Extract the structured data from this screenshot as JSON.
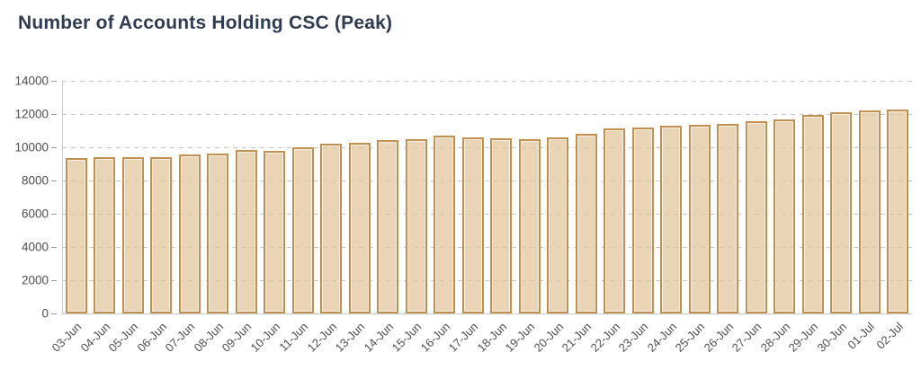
{
  "title": {
    "text": "Number of Accounts Holding CSC (Peak)"
  },
  "chart_data": {
    "type": "bar",
    "title": "Number of Accounts Holding CSC (Peak)",
    "categories": [
      "03-Jun",
      "04-Jun",
      "05-Jun",
      "06-Jun",
      "07-Jun",
      "08-Jun",
      "09-Jun",
      "10-Jun",
      "11-Jun",
      "12-Jun",
      "13-Jun",
      "14-Jun",
      "15-Jun",
      "16-Jun",
      "17-Jun",
      "18-Jun",
      "19-Jun",
      "20-Jun",
      "21-Jun",
      "22-Jun",
      "23-Jun",
      "24-Jun",
      "25-Jun",
      "26-Jun",
      "27-Jun",
      "28-Jun",
      "29-Jun",
      "30-Jun",
      "01-Jul",
      "02-Jul"
    ],
    "values": [
      9370,
      9395,
      9430,
      9395,
      9570,
      9610,
      9840,
      9805,
      10020,
      10200,
      10290,
      10420,
      10470,
      10700,
      10610,
      10540,
      10510,
      10600,
      10800,
      11150,
      11200,
      11300,
      11340,
      11390,
      11550,
      11680,
      11940,
      12100,
      12220,
      12260
    ],
    "xlabel": "",
    "ylabel": "",
    "ylim": [
      0,
      14000
    ],
    "yticks": [
      0,
      2000,
      4000,
      6000,
      8000,
      10000,
      12000,
      14000
    ],
    "grid": "horizontal-dashed",
    "legend": "none",
    "colors": {
      "bar_fill": "rgba(224,196,152,0.72)",
      "bar_border": "#c19050",
      "gridline": "#c7c7c7",
      "axis_line": "#cccccc",
      "tick_label": "#4f4f4f",
      "title": "#2f3b50"
    }
  }
}
